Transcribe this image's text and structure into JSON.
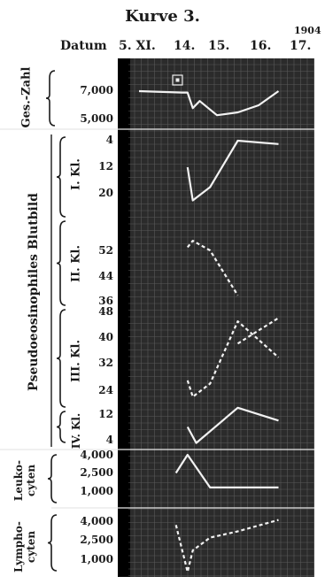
{
  "title": "Kurve 3.",
  "year": "1904",
  "x_axis": {
    "label": "Datum",
    "dates": [
      "5. XI.",
      "14.",
      "15.",
      "16.",
      "17."
    ]
  },
  "panels": {
    "gesamt": {
      "label": "Ges.-Zahl",
      "ticks": [
        "7,000",
        "5,000"
      ]
    },
    "blutbild": {
      "label": "Pseudoeosinophiles Blutbild",
      "classes": [
        {
          "label": "I. Kl.",
          "ticks": [
            "4",
            "12",
            "20"
          ]
        },
        {
          "label": "II. Kl.",
          "ticks": [
            "52",
            "44"
          ]
        },
        {
          "label": "III. Kl.",
          "ticks": [
            "36",
            "48",
            "40",
            "32",
            "24"
          ]
        },
        {
          "label": "IV. Kl.",
          "ticks": [
            "12",
            "4"
          ]
        }
      ]
    },
    "leukocyten": {
      "label": "Leuko-cyten",
      "ticks": [
        "4,000",
        "2,500",
        "1,000"
      ]
    },
    "lymphocyten": {
      "label": "Lympho-cyten",
      "ticks": [
        "4,000",
        "2,500",
        "1,000"
      ]
    }
  },
  "chart_data": {
    "type": "line",
    "title": "Kurve 3.",
    "xlabel": "Datum",
    "categories": [
      "5. XI.",
      "14.",
      "15.",
      "16.",
      "17."
    ],
    "series": [
      {
        "panel": "Ges.-Zahl",
        "style": "solid",
        "x": [
          0,
          1.0,
          1.15,
          1.3,
          1.5,
          1.8,
          2.0,
          2.5,
          3.0,
          3.5
        ],
        "values": [
          7000,
          6900,
          6900,
          5800,
          6300,
          5700,
          5300,
          5500,
          6000,
          7000
        ]
      },
      {
        "panel": "I. Kl.",
        "style": "solid",
        "x": [
          1.15,
          1.3,
          1.8,
          2.5,
          3.5
        ],
        "values": [
          12,
          22,
          18,
          4,
          5
        ]
      },
      {
        "panel": "II. Kl.",
        "style": "dashed",
        "x": [
          1.15,
          1.3,
          1.8,
          2.5
        ],
        "values": [
          53,
          55,
          52,
          38
        ]
      },
      {
        "panel": "II./III. Kl.",
        "style": "dashed",
        "x": [
          2.5,
          3.5
        ],
        "values": [
          38,
          46
        ]
      },
      {
        "panel": "III. Kl.",
        "style": "dashed",
        "x": [
          1.15,
          1.3,
          1.8,
          2.5,
          3.5
        ],
        "values": [
          27,
          22,
          26,
          45,
          34
        ]
      },
      {
        "panel": "IV. Kl.",
        "style": "solid",
        "x": [
          1.15,
          1.4,
          2.5,
          3.5
        ],
        "values": [
          8,
          3,
          14,
          10
        ]
      },
      {
        "panel": "Leukocyten",
        "style": "solid",
        "x": [
          0.85,
          1.15,
          1.8,
          2.5,
          3.5
        ],
        "values": [
          2500,
          4000,
          1300,
          1300,
          1300
        ]
      },
      {
        "panel": "Lymphocyten",
        "style": "dashed",
        "x": [
          0.85,
          1.15,
          1.3,
          1.8,
          2.5,
          3.5
        ],
        "values": [
          3700,
          0,
          1700,
          2700,
          3200,
          4100
        ]
      }
    ]
  }
}
